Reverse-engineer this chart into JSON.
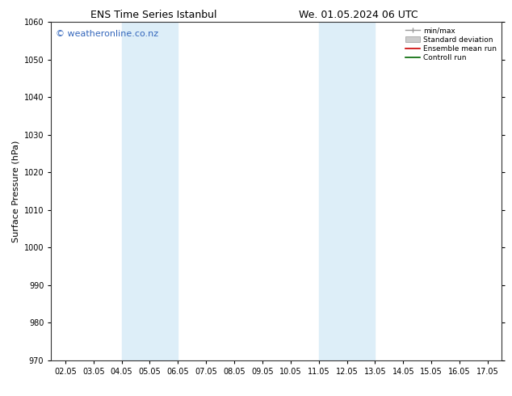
{
  "title_left": "ENS Time Series Istanbul",
  "title_right": "We. 01.05.2024 06 UTC",
  "ylabel": "Surface Pressure (hPa)",
  "ylim": [
    970,
    1060
  ],
  "yticks": [
    970,
    980,
    990,
    1000,
    1010,
    1020,
    1030,
    1040,
    1050,
    1060
  ],
  "xtick_labels": [
    "02.05",
    "03.05",
    "04.05",
    "05.05",
    "06.05",
    "07.05",
    "08.05",
    "09.05",
    "10.05",
    "11.05",
    "12.05",
    "13.05",
    "14.05",
    "15.05",
    "16.05",
    "17.05"
  ],
  "xtick_positions": [
    0,
    1,
    2,
    3,
    4,
    5,
    6,
    7,
    8,
    9,
    10,
    11,
    12,
    13,
    14,
    15
  ],
  "xlim": [
    -0.5,
    15.5
  ],
  "shaded_bands": [
    {
      "x_start": 2,
      "x_end": 4,
      "color": "#ddeef8"
    },
    {
      "x_start": 9,
      "x_end": 11,
      "color": "#ddeef8"
    }
  ],
  "watermark_text": "© weatheronline.co.nz",
  "watermark_color": "#3366bb",
  "watermark_fontsize": 8,
  "legend_labels": [
    "min/max",
    "Standard deviation",
    "Ensemble mean run",
    "Controll run"
  ],
  "background_color": "#ffffff",
  "plot_bg_color": "#ffffff",
  "title_fontsize": 9,
  "axis_label_fontsize": 8,
  "tick_fontsize": 7
}
